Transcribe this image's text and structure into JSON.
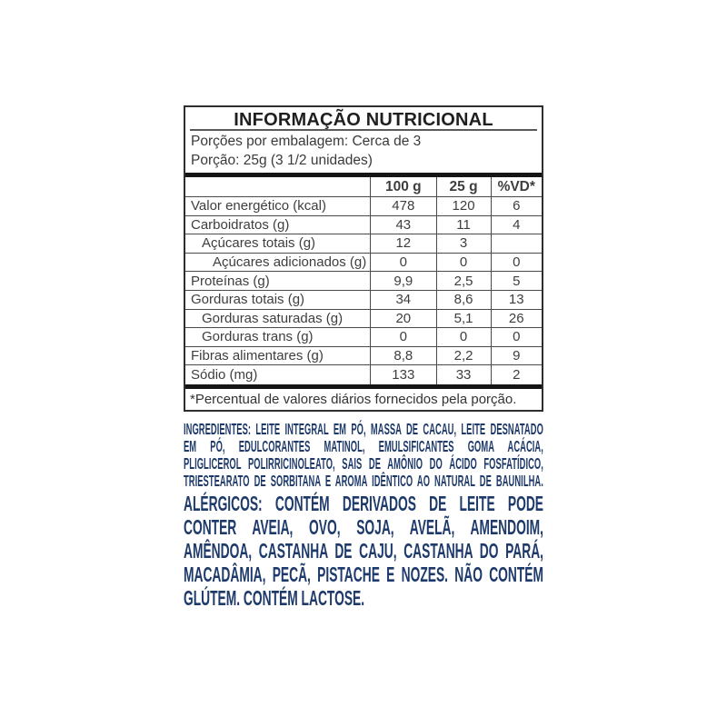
{
  "table": {
    "title": "INFORMAÇÃO NUTRICIONAL",
    "servings_line": "Porções por embalagem: Cerca de 3",
    "portion_line": "Porção: 25g (3 1/2 unidades)",
    "columns": [
      "100 g",
      "25 g",
      "%VD*"
    ],
    "rows": [
      {
        "label": "Valor energético (kcal)",
        "v100": "478",
        "v25": "120",
        "vd": "6"
      },
      {
        "label": "Carboidratos (g)",
        "v100": "43",
        "v25": "11",
        "vd": "4"
      },
      {
        "label": "Açúcares totais (g)",
        "v100": "12",
        "v25": "3",
        "vd": ""
      },
      {
        "label": "Açúcares adicionados (g)",
        "v100": "0",
        "v25": "0",
        "vd": "0"
      },
      {
        "label": "Proteínas (g)",
        "v100": "9,9",
        "v25": "2,5",
        "vd": "5"
      },
      {
        "label": "Gorduras totais (g)",
        "v100": "34",
        "v25": "8,6",
        "vd": "13"
      },
      {
        "label": "Gorduras saturadas (g)",
        "v100": "20",
        "v25": "5,1",
        "vd": "26"
      },
      {
        "label": "Gorduras trans (g)",
        "v100": "0",
        "v25": "0",
        "vd": "0"
      },
      {
        "label": "Fibras alimentares (g)",
        "v100": "8,8",
        "v25": "2,2",
        "vd": "9"
      },
      {
        "label": "Sódio (mg)",
        "v100": "133",
        "v25": "33",
        "vd": "2"
      }
    ],
    "footnote": "*Percentual de valores diários fornecidos pela porção."
  },
  "ingredients": {
    "label": "INGREDIENTES:",
    "lines": [
      " LEITE INTEGRAL EM PÓ, MASSA DE CACAU, LEITE DESNATADO",
      "EM PÓ, EDULCORANTES MATINOL, EMULSIFICANTES GOMA ACÁCIA,",
      "PLIGLICEROL POLIRRICINOLEATO, SAIS DE AMÔNIO DO ÁCIDO FOSFATÍDICO,",
      "TRIESTEARATO DE SORBITANA E AROMA IDÊNTICO AO NATURAL DE BAUNILHA."
    ]
  },
  "allergens": {
    "lines": [
      "ALÉRGICOS: CONTÉM DERIVADOS DE LEITE PODE",
      "CONTER AVEIA, OVO, SOJA, AVELÃ, AMENDOIM,",
      "AMÊNDOA, CASTANHA DE CAJU, CASTANHA DO PARÁ,",
      "MACADÂMIA, PECÃ, PISTACHE E NOZES. NÃO CONTÉM",
      "GLÚTEM. CONTÉM LACTOSE."
    ]
  },
  "colors": {
    "blue": "#1e3a6b",
    "table_text": "#3e3e3e",
    "border_thin": "#4a4a4a",
    "border_outer": "#2e2e2e",
    "bar": "#151515"
  }
}
